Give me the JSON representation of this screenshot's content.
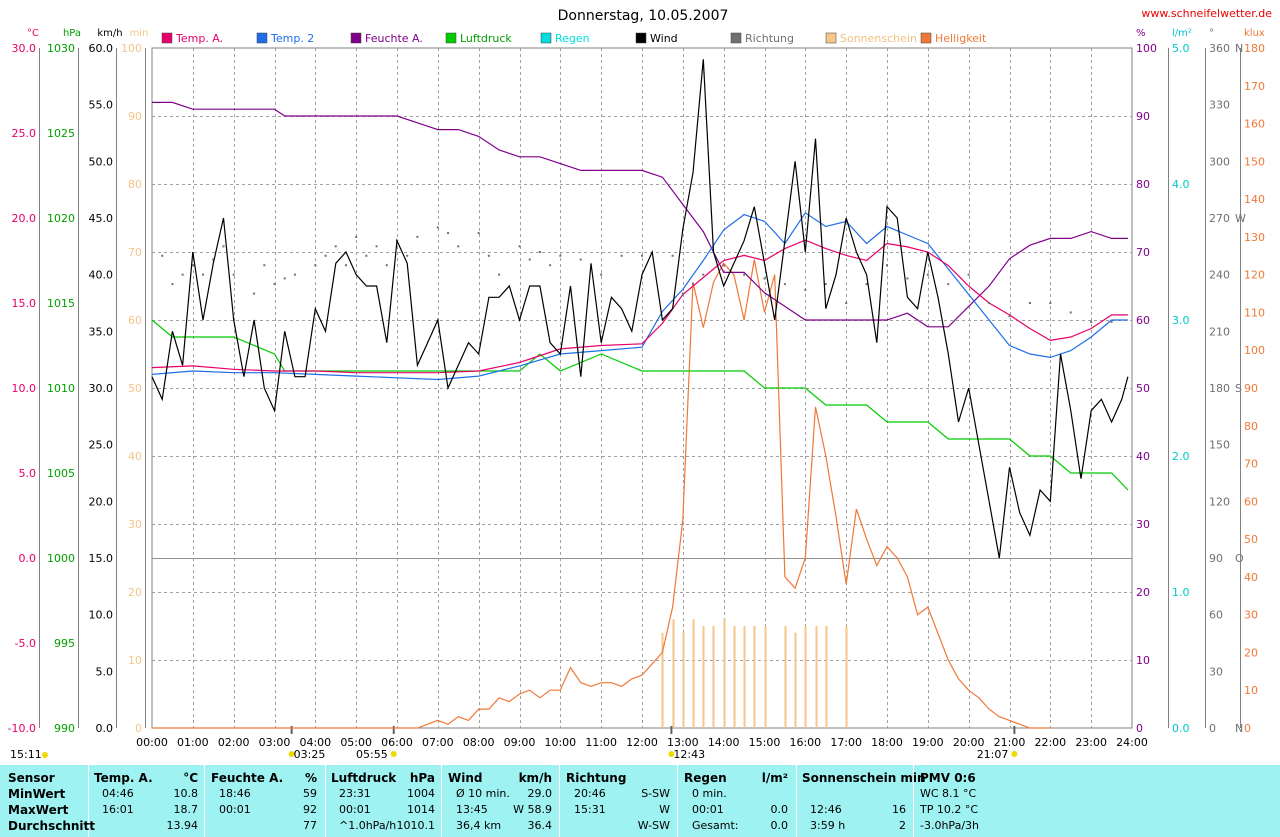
{
  "title": "Donnerstag, 10.05.2007",
  "website": "www.schneifelwetter.de",
  "colors": {
    "temp_a": "#e8006a",
    "temp2": "#1e6ee8",
    "feuchte": "#80008c",
    "luftdruck": "#00cc00",
    "regen": "#00dede",
    "wind": "#000000",
    "richtung": "#707070",
    "sonnenschein": "#f5c58a",
    "helligkeit": "#f07836",
    "footer_bg": "#9ff2f2"
  },
  "legend": [
    {
      "label": "Temp. A.",
      "color": "#e8006a"
    },
    {
      "label": "Temp. 2",
      "color": "#1e6ee8"
    },
    {
      "label": "Feuchte A.",
      "color": "#80008c"
    },
    {
      "label": "Luftdruck",
      "color": "#00cc00"
    },
    {
      "label": "Regen",
      "color": "#00dede"
    },
    {
      "label": "Wind",
      "color": "#000000"
    },
    {
      "label": "Richtung",
      "color": "#707070"
    },
    {
      "label": "Sonnenschein",
      "color": "#f5c58a"
    },
    {
      "label": "Helligkeit",
      "color": "#f07836"
    }
  ],
  "axes_left": [
    {
      "unit": "°C",
      "color": "#e8006a",
      "ticks": [
        "30.0",
        "25.0",
        "20.0",
        "15.0",
        "10.0",
        "5.0",
        "0.0",
        "-5.0",
        "-10.0"
      ]
    },
    {
      "unit": "hPa",
      "color": "#00a000",
      "ticks": [
        "1030",
        "1025",
        "1020",
        "1015",
        "1010",
        "1005",
        "1000",
        "995",
        "990"
      ]
    },
    {
      "unit": "km/h",
      "color": "#000000",
      "ticks": [
        "60.0",
        "55.0",
        "50.0",
        "45.0",
        "40.0",
        "35.0",
        "30.0",
        "25.0",
        "20.0",
        "15.0",
        "10.0",
        "5.0",
        "0.0"
      ]
    },
    {
      "unit": "min",
      "color": "#f5c58a",
      "ticks": [
        "100",
        "90",
        "80",
        "70",
        "60",
        "50",
        "40",
        "30",
        "20",
        "10",
        "0"
      ]
    }
  ],
  "axes_right": [
    {
      "unit": "%",
      "color": "#80008c",
      "ticks": [
        "100",
        "90",
        "80",
        "70",
        "60",
        "50",
        "40",
        "30",
        "20",
        "10",
        "0"
      ]
    },
    {
      "unit": "l/m²",
      "color": "#00c8c8",
      "ticks": [
        "5.0",
        "4.0",
        "3.0",
        "2.0",
        "1.0",
        "0.0"
      ]
    },
    {
      "unit": "°",
      "color": "#707070",
      "ticks": [
        "360",
        "330",
        "300",
        "270",
        "240",
        "210",
        "180",
        "150",
        "120",
        "90",
        "60",
        "30",
        "0"
      ],
      "compass": [
        {
          "at": "360",
          "label": "N"
        },
        {
          "at": "270",
          "label": "W"
        },
        {
          "at": "180",
          "label": "S"
        },
        {
          "at": "90",
          "label": "O"
        },
        {
          "at": "0",
          "label": "N"
        }
      ]
    },
    {
      "unit": "klux",
      "color": "#f07836",
      "ticks": [
        "180",
        "170",
        "160",
        "150",
        "140",
        "130",
        "120",
        "110",
        "100",
        "90",
        "80",
        "70",
        "60",
        "50",
        "40",
        "30",
        "20",
        "10",
        "0"
      ]
    }
  ],
  "x_ticks": [
    "00:00",
    "01:00",
    "02:00",
    "03:00",
    "04:00",
    "05:00",
    "06:00",
    "07:00",
    "08:00",
    "09:00",
    "10:00",
    "11:00",
    "12:00",
    "13:00",
    "14:00",
    "15:00",
    "16:00",
    "17:00",
    "18:00",
    "19:00",
    "20:00",
    "21:00",
    "22:00",
    "23:00",
    "24:00"
  ],
  "sun_events": [
    {
      "label": "03:25",
      "time": 3.42
    },
    {
      "label": "05:55",
      "time": 5.92
    },
    {
      "label": "12:43",
      "time": 12.72
    },
    {
      "label": "21:07",
      "time": 21.12
    }
  ],
  "moon_time": "15:11",
  "chart_data": {
    "type": "line",
    "title": "Donnerstag, 10.05.2007",
    "x_unit": "hour",
    "xlim": [
      0,
      24
    ],
    "series": [
      {
        "name": "Temp. A.",
        "unit": "°C",
        "ylim": [
          -10,
          30
        ],
        "x": [
          0,
          1,
          2,
          3,
          4,
          5,
          6,
          7,
          8,
          9,
          10,
          11,
          12,
          12.5,
          13,
          13.5,
          14,
          14.5,
          15,
          15.5,
          16,
          16.5,
          17,
          17.5,
          18,
          18.5,
          19,
          19.5,
          20,
          20.5,
          21,
          21.5,
          22,
          22.5,
          23,
          23.5,
          23.9
        ],
        "y": [
          11.2,
          11.3,
          11.1,
          11.0,
          11.0,
          10.9,
          10.9,
          10.9,
          11.0,
          11.5,
          12.3,
          12.5,
          12.6,
          13.8,
          15.5,
          16.5,
          17.5,
          17.8,
          17.5,
          18.2,
          18.7,
          18.2,
          17.8,
          17.5,
          18.5,
          18.3,
          18.0,
          17.2,
          16.0,
          15.0,
          14.3,
          13.5,
          12.8,
          13.0,
          13.5,
          14.3,
          14.3
        ]
      },
      {
        "name": "Temp. 2",
        "unit": "°C",
        "ylim": [
          -10,
          30
        ],
        "x": [
          0,
          1,
          2,
          3,
          4,
          5,
          6,
          7,
          8,
          9,
          10,
          11,
          12,
          12.5,
          13,
          13.5,
          14,
          14.5,
          15,
          15.5,
          16,
          16.5,
          17,
          17.5,
          18,
          18.5,
          19,
          19.5,
          20,
          20.5,
          21,
          21.5,
          22,
          22.5,
          23,
          23.5,
          23.9
        ],
        "y": [
          10.8,
          11.0,
          10.9,
          10.9,
          10.8,
          10.7,
          10.6,
          10.5,
          10.7,
          11.3,
          12.0,
          12.2,
          12.4,
          14.5,
          15.8,
          17.5,
          19.3,
          20.2,
          19.8,
          18.5,
          20.3,
          19.5,
          19.8,
          18.5,
          19.5,
          19.0,
          18.5,
          17.0,
          15.5,
          14.0,
          12.5,
          12.0,
          11.8,
          12.2,
          13.0,
          14.0,
          14.0
        ]
      },
      {
        "name": "Feuchte A.",
        "unit": "%",
        "ylim": [
          0,
          100
        ],
        "x": [
          0,
          0.5,
          1,
          2,
          3,
          3.25,
          4,
          5,
          6,
          6.5,
          7,
          7.5,
          8,
          8.5,
          9,
          9.5,
          10,
          10.5,
          11,
          11.5,
          12,
          12.5,
          13,
          13.5,
          14,
          14.5,
          15,
          15.5,
          16,
          16.5,
          17,
          17.5,
          18,
          18.5,
          19,
          19.5,
          20,
          20.5,
          21,
          21.5,
          22,
          22.5,
          23,
          23.5,
          23.9
        ],
        "y": [
          92,
          92,
          91,
          91,
          91,
          90,
          90,
          90,
          90,
          89,
          88,
          88,
          87,
          85,
          84,
          84,
          83,
          82,
          82,
          82,
          82,
          81,
          77,
          73,
          67,
          67,
          64,
          62,
          60,
          60,
          60,
          60,
          60,
          61,
          59,
          59,
          62,
          65,
          69,
          71,
          72,
          72,
          73,
          72,
          72
        ]
      },
      {
        "name": "Luftdruck",
        "unit": "hPa",
        "ylim": [
          990,
          1030
        ],
        "x": [
          0,
          0.5,
          1,
          2,
          3,
          3.25,
          4,
          5,
          6,
          7,
          8,
          9,
          9.5,
          10,
          11,
          12,
          13,
          14,
          14.5,
          15,
          15.5,
          16,
          16.5,
          17,
          17.5,
          18,
          18.5,
          19,
          19.5,
          20,
          20.5,
          21,
          21.5,
          22,
          22.5,
          23,
          23.5,
          23.9
        ],
        "y": [
          1014,
          1013,
          1013,
          1013,
          1012,
          1011,
          1011,
          1011,
          1011,
          1011,
          1011,
          1011,
          1012,
          1011,
          1012,
          1011,
          1011,
          1011,
          1011,
          1010,
          1010,
          1010,
          1009,
          1009,
          1009,
          1008,
          1008,
          1008,
          1007,
          1007,
          1007,
          1007,
          1006,
          1006,
          1005,
          1005,
          1005,
          1004
        ]
      },
      {
        "name": "Wind",
        "unit": "km/h",
        "ylim": [
          0,
          60
        ],
        "x": [
          0,
          0.25,
          0.5,
          0.75,
          1,
          1.25,
          1.5,
          1.75,
          2,
          2.25,
          2.5,
          2.75,
          3,
          3.25,
          3.5,
          3.75,
          4,
          4.25,
          4.5,
          4.75,
          5,
          5.25,
          5.5,
          5.75,
          6,
          6.25,
          6.5,
          6.75,
          7,
          7.25,
          7.5,
          7.75,
          8,
          8.25,
          8.5,
          8.75,
          9,
          9.25,
          9.5,
          9.75,
          10,
          10.25,
          10.5,
          10.75,
          11,
          11.25,
          11.5,
          11.75,
          12,
          12.25,
          12.5,
          12.75,
          13,
          13.25,
          13.5,
          13.75,
          14,
          14.25,
          14.5,
          14.75,
          15,
          15.25,
          15.5,
          15.75,
          16,
          16.25,
          16.5,
          16.75,
          17,
          17.25,
          17.5,
          17.75,
          18,
          18.25,
          18.5,
          18.75,
          19,
          19.25,
          19.5,
          19.75,
          20,
          20.25,
          20.5,
          20.75,
          21,
          21.25,
          21.5,
          21.75,
          22,
          22.25,
          22.5,
          22.75,
          23,
          23.25,
          23.5,
          23.75,
          23.9
        ],
        "y": [
          31,
          29,
          35,
          32,
          42,
          36,
          41,
          45,
          36,
          31,
          36,
          30,
          28,
          35,
          31,
          31,
          37,
          35,
          41,
          42,
          40,
          39,
          39,
          34,
          43,
          41,
          32,
          34,
          36,
          30,
          32,
          34,
          33,
          38,
          38,
          39,
          36,
          39,
          39,
          34,
          33,
          39,
          31,
          41,
          34,
          38,
          37,
          35,
          40,
          42,
          36,
          37,
          44,
          49,
          59,
          42,
          39,
          41,
          43,
          46,
          41,
          36,
          43,
          50,
          42,
          52,
          37,
          40,
          45,
          42,
          40,
          34,
          46,
          45,
          38,
          37,
          42,
          38,
          33,
          27,
          30,
          25,
          20,
          15,
          23,
          19,
          17,
          21,
          20,
          33,
          28,
          22,
          28,
          29,
          27,
          29,
          31
        ]
      },
      {
        "name": "Helligkeit",
        "unit": "klux",
        "ylim": [
          0,
          180
        ],
        "x": [
          0,
          6,
          6.5,
          7,
          7.25,
          7.5,
          7.75,
          8,
          8.25,
          8.5,
          8.75,
          9,
          9.25,
          9.5,
          9.75,
          10,
          10.25,
          10.5,
          10.75,
          11,
          11.25,
          11.5,
          11.75,
          12,
          12.25,
          12.5,
          12.75,
          13,
          13.25,
          13.5,
          13.75,
          14,
          14.25,
          14.5,
          14.75,
          15,
          15.25,
          15.5,
          15.75,
          16,
          16.25,
          16.5,
          16.75,
          17,
          17.25,
          17.5,
          17.75,
          18,
          18.25,
          18.5,
          18.75,
          19,
          19.25,
          19.5,
          19.75,
          20,
          20.25,
          20.5,
          20.75,
          21,
          21.25,
          21.5,
          21.75,
          22
        ],
        "y": [
          0,
          0,
          0,
          2,
          1,
          3,
          2,
          5,
          5,
          8,
          7,
          9,
          10,
          8,
          10,
          10,
          16,
          12,
          11,
          12,
          12,
          11,
          13,
          14,
          17,
          20,
          32,
          55,
          118,
          106,
          118,
          123,
          120,
          108,
          124,
          110,
          120,
          40,
          37,
          45,
          85,
          72,
          56,
          38,
          58,
          50,
          43,
          48,
          45,
          40,
          30,
          32,
          25,
          18,
          13,
          10,
          8,
          5,
          3,
          2,
          1,
          0,
          0,
          0
        ]
      },
      {
        "name": "Sonnenschein",
        "unit": "min",
        "ylim": [
          0,
          100
        ],
        "type": "bar",
        "x": [
          12.5,
          12.75,
          13,
          13.25,
          13.5,
          13.75,
          14,
          14.25,
          14.5,
          14.75,
          15,
          15.5,
          15.75,
          16,
          16.25,
          16.5,
          17
        ],
        "y": [
          14,
          16,
          14,
          16,
          15,
          15,
          16,
          15,
          15,
          15,
          15,
          15,
          14,
          15,
          15,
          15,
          15
        ]
      },
      {
        "name": "Richtung",
        "unit": "°",
        "ylim": [
          0,
          360
        ],
        "type": "scatter",
        "x": [
          0.25,
          0.5,
          0.75,
          1,
          1.25,
          1.5,
          1.75,
          2,
          2.5,
          2.75,
          3,
          3.25,
          3.5,
          4,
          4.25,
          4.5,
          4.75,
          5,
          5.25,
          5.5,
          5.75,
          6,
          6.25,
          6.5,
          7,
          7.25,
          7.5,
          8,
          8.25,
          8.5,
          9,
          9.25,
          9.5,
          9.75,
          10,
          10.5,
          11,
          11.5,
          12,
          12.75,
          13,
          13.25,
          13.5,
          14,
          14.5,
          15,
          15.5,
          16,
          16.5,
          17,
          17.5,
          18,
          18.5,
          19,
          19.5,
          20,
          20.5,
          21,
          21.5,
          22,
          22.5,
          23,
          23.5
        ],
        "y": [
          250,
          235,
          240,
          245,
          240,
          248,
          255,
          240,
          230,
          245,
          235,
          238,
          240,
          245,
          250,
          255,
          245,
          260,
          250,
          255,
          245,
          258,
          250,
          260,
          265,
          262,
          255,
          262,
          250,
          240,
          255,
          248,
          252,
          245,
          250,
          248,
          240,
          250,
          250,
          250,
          230,
          235,
          240,
          245,
          240,
          238,
          235,
          232,
          235,
          225,
          235,
          245,
          238,
          240,
          235,
          240,
          225,
          218,
          225,
          225,
          220,
          215,
          215
        ]
      }
    ]
  },
  "footer": {
    "sensor": {
      "header": "Sensor",
      "rows": [
        "MinWert",
        "MaxWert",
        "Durchschnitt"
      ]
    },
    "temp": {
      "header": "Temp. A.",
      "unit": "°C",
      "rows": [
        [
          "04:46",
          "10.8"
        ],
        [
          "16:01",
          "18.7"
        ],
        [
          "",
          "13.94"
        ]
      ]
    },
    "feuchte": {
      "header": "Feuchte A.",
      "unit": "%",
      "rows": [
        [
          "18:46",
          "59"
        ],
        [
          "00:01",
          "92"
        ],
        [
          "",
          "77"
        ]
      ]
    },
    "luftdruck": {
      "header": "Luftdruck",
      "unit": "hPa",
      "rows": [
        [
          "23:31",
          "1004"
        ],
        [
          "00:01",
          "1014"
        ],
        [
          "^1.0hPa/h",
          "1010.1"
        ]
      ]
    },
    "wind": {
      "header": "Wind",
      "unit": "km/h",
      "rows": [
        [
          "Ø 10 min.",
          "29.0"
        ],
        [
          "13:45",
          "W 58.9"
        ],
        [
          "36,4 km",
          "36.4"
        ]
      ]
    },
    "richtung": {
      "header": "Richtung",
      "rows": [
        [
          "20:46",
          "S-SW"
        ],
        [
          "15:31",
          "W"
        ],
        [
          "",
          "W-SW"
        ]
      ]
    },
    "regen": {
      "header": "Regen",
      "unit": "l/m²",
      "rows": [
        [
          "0 min.",
          ""
        ],
        [
          "00:01",
          "0.0"
        ],
        [
          "Gesamt:",
          "0.0"
        ]
      ]
    },
    "sonne": {
      "header": "Sonnenschein min",
      "rows": [
        [
          "",
          ""
        ],
        [
          "12:46",
          "16"
        ],
        [
          "3:59 h",
          "2"
        ]
      ]
    },
    "pmv": {
      "header": "PMV 0:6",
      "rows": [
        "WC 8.1 °C",
        "TP 10.2 °C",
        "-3.0hPa/3h"
      ]
    }
  }
}
